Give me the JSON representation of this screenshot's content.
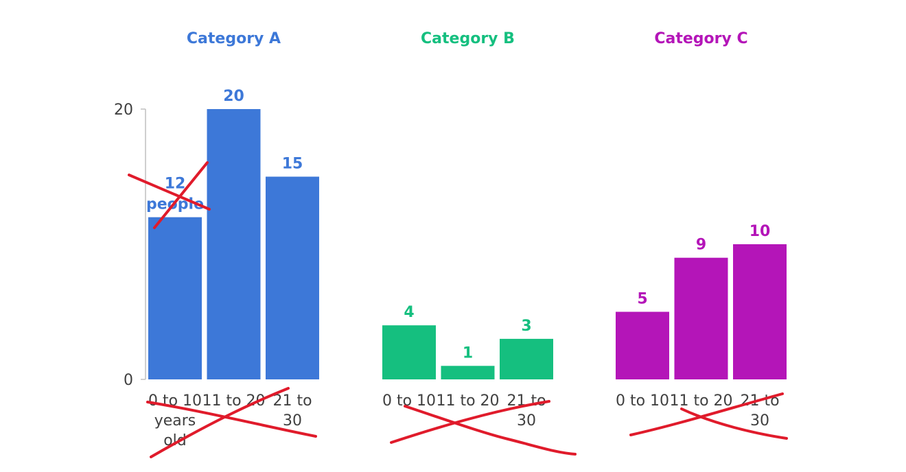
{
  "chart_data": [
    {
      "type": "bar",
      "title": "Category A",
      "categories": [
        "0 to 10 years old",
        "11 to 20",
        "21 to 30"
      ],
      "values": [
        12,
        20,
        15
      ],
      "data_labels": [
        "12 people",
        "20",
        "15"
      ],
      "ylim": [
        0,
        20
      ],
      "y_ticks": [
        0,
        20
      ],
      "color": "#3d78d8",
      "legend": "none",
      "grid": false
    },
    {
      "type": "bar",
      "title": "Category B",
      "categories": [
        "0 to 10",
        "11 to 20",
        "21 to 30"
      ],
      "values": [
        4,
        1,
        3
      ],
      "data_labels": [
        "4",
        "1",
        "3"
      ],
      "ylim": [
        0,
        20
      ],
      "color": "#15bf7f",
      "legend": "none",
      "grid": false
    },
    {
      "type": "bar",
      "title": "Category C",
      "categories": [
        "0 to 10",
        "11 to 20",
        "21 to 30"
      ],
      "values": [
        5,
        9,
        10
      ],
      "data_labels": [
        "5",
        "9",
        "10"
      ],
      "ylim": [
        0,
        20
      ],
      "color": "#b415b8",
      "legend": "none",
      "grid": false
    }
  ],
  "annotations": {
    "strike_color": "#e01b2b"
  }
}
